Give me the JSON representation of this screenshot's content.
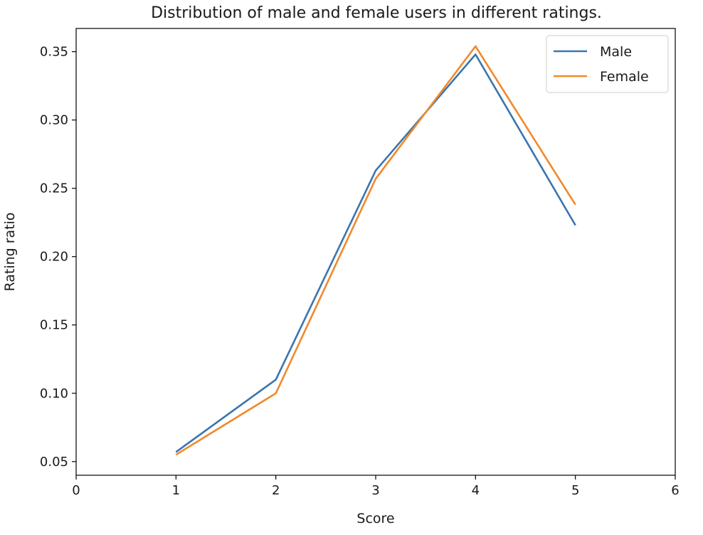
{
  "chart_data": {
    "type": "line",
    "title": "Distribution of male and female users in different ratings.",
    "xlabel": "Score",
    "ylabel": "Rating ratio",
    "xlim": [
      0,
      6
    ],
    "ylim": [
      0.04,
      0.367
    ],
    "xticks": [
      0,
      1,
      2,
      3,
      4,
      5,
      6
    ],
    "xtick_labels": [
      "0",
      "1",
      "2",
      "3",
      "4",
      "5",
      "6"
    ],
    "yticks": [
      0.05,
      0.1,
      0.15,
      0.2,
      0.25,
      0.3,
      0.35
    ],
    "ytick_labels": [
      "0.05",
      "0.10",
      "0.15",
      "0.20",
      "0.25",
      "0.30",
      "0.35"
    ],
    "grid": false,
    "legend_position": "top-right",
    "x": [
      1,
      2,
      3,
      4,
      5
    ],
    "series": [
      {
        "name": "Male",
        "color": "#3a75b0",
        "values": [
          0.057,
          0.11,
          0.263,
          0.348,
          0.223
        ]
      },
      {
        "name": "Female",
        "color": "#f08a2c",
        "values": [
          0.055,
          0.1,
          0.257,
          0.354,
          0.238
        ]
      }
    ]
  }
}
